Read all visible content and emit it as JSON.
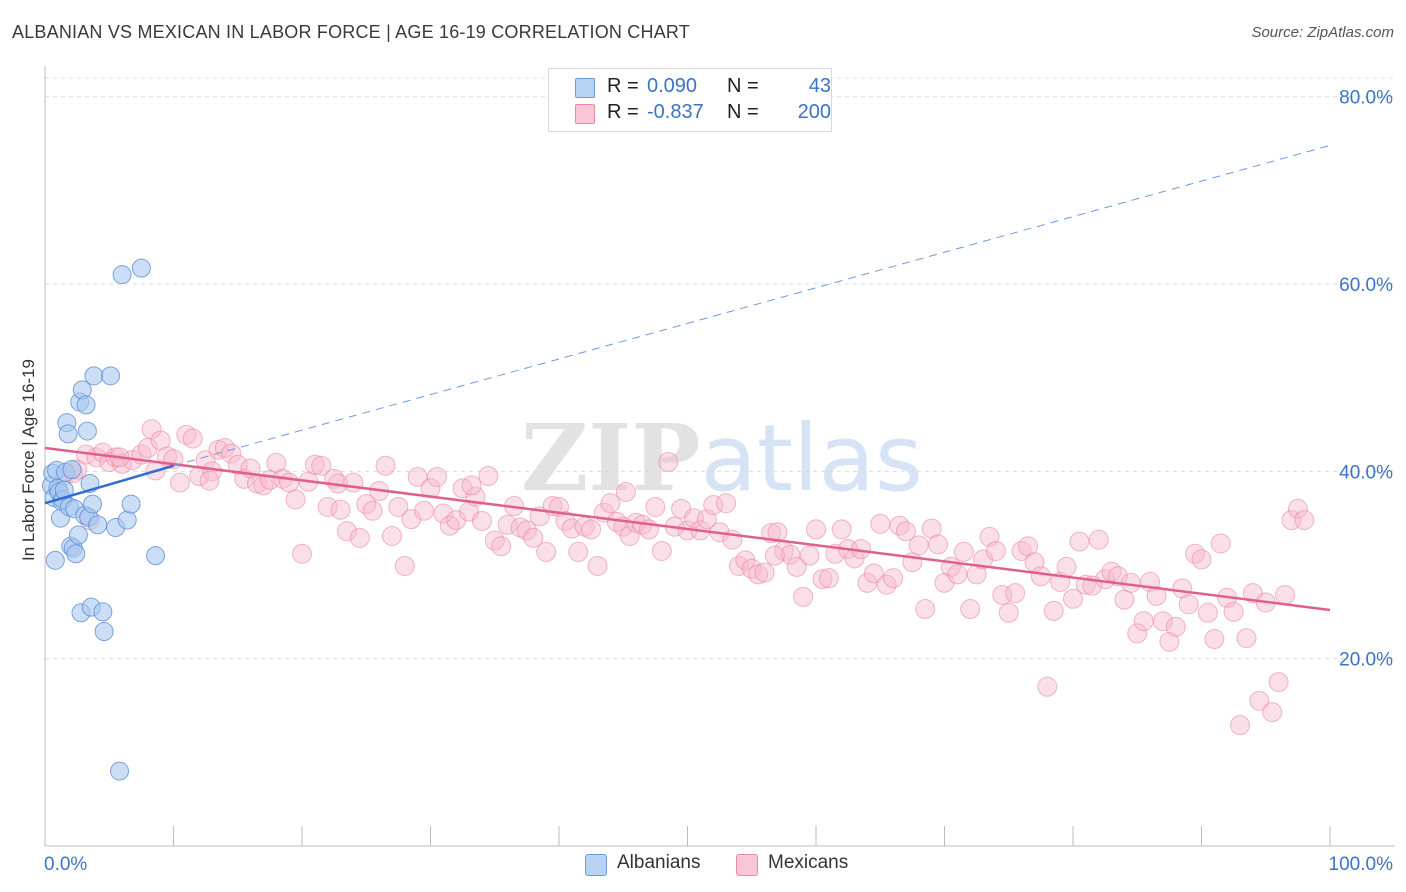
{
  "title": "ALBANIAN VS MEXICAN IN LABOR FORCE | AGE 16-19 CORRELATION CHART",
  "source": "Source: ZipAtlas.com",
  "watermark": "ZIPatlas",
  "legend_top": {
    "rows": [
      {
        "r_label": "R =",
        "r_value": "0.090",
        "n_label": "N =",
        "n_value": "43"
      },
      {
        "r_label": "R =",
        "r_value": "-0.837",
        "n_label": "N =",
        "n_value": "200"
      }
    ]
  },
  "legend_bottom": {
    "albanians": "Albanians",
    "mexicans": "Mexicans"
  },
  "colors": {
    "albanian_fill": "#a9c8f0",
    "albanian_stroke": "#5b8fd6",
    "albanian_line": "#2f6fd1",
    "mexican_fill": "#f7b9cc",
    "mexican_stroke": "#e8809f",
    "mexican_line": "#e0608a",
    "axis_text": "#3b73c8",
    "grid": "#dcdcdc"
  },
  "chart_data": {
    "type": "scatter",
    "title": "ALBANIAN VS MEXICAN IN LABOR FORCE | AGE 16-19 CORRELATION CHART",
    "xlabel": "",
    "ylabel": "In Labor Force | Age 16-19",
    "xlim": [
      0,
      100
    ],
    "ylim": [
      0,
      82
    ],
    "x_tick_labels": [
      "0.0%",
      "100.0%"
    ],
    "y_ticks": [
      20,
      40,
      60,
      80
    ],
    "y_tick_labels": [
      "20.0%",
      "40.0%",
      "60.0%",
      "80.0%"
    ],
    "grid": true,
    "legend_placement": "top-center",
    "series": [
      {
        "name": "Albanians",
        "r": 0.09,
        "n": 43,
        "trend_solid": [
          [
            0,
            36.6
          ],
          [
            10,
            40.6
          ]
        ],
        "trend_dashed": [
          [
            10,
            40.6
          ],
          [
            100,
            74.8
          ]
        ],
        "points": [
          [
            0.5,
            38.5
          ],
          [
            0.6,
            39.8
          ],
          [
            0.7,
            37.2
          ],
          [
            0.8,
            30.5
          ],
          [
            0.9,
            40.1
          ],
          [
            1.0,
            38.2
          ],
          [
            1.1,
            37.8
          ],
          [
            1.2,
            35.0
          ],
          [
            1.3,
            36.8
          ],
          [
            1.4,
            37.0
          ],
          [
            1.5,
            38.0
          ],
          [
            1.6,
            39.9
          ],
          [
            1.7,
            45.2
          ],
          [
            1.8,
            44.0
          ],
          [
            1.9,
            36.2
          ],
          [
            2.0,
            32.0
          ],
          [
            2.1,
            40.2
          ],
          [
            2.2,
            31.8
          ],
          [
            2.3,
            36.0
          ],
          [
            2.4,
            31.2
          ],
          [
            2.6,
            33.2
          ],
          [
            2.7,
            47.4
          ],
          [
            2.8,
            24.9
          ],
          [
            2.9,
            48.7
          ],
          [
            3.1,
            35.3
          ],
          [
            3.2,
            47.1
          ],
          [
            3.3,
            44.3
          ],
          [
            3.4,
            35.1
          ],
          [
            3.5,
            38.7
          ],
          [
            3.6,
            25.5
          ],
          [
            3.7,
            36.5
          ],
          [
            3.8,
            50.2
          ],
          [
            4.1,
            34.3
          ],
          [
            4.5,
            25.0
          ],
          [
            4.6,
            22.9
          ],
          [
            5.1,
            50.2
          ],
          [
            5.5,
            34.0
          ],
          [
            5.8,
            8.0
          ],
          [
            6.0,
            61.0
          ],
          [
            6.4,
            34.8
          ],
          [
            6.7,
            36.5
          ],
          [
            7.5,
            61.7
          ],
          [
            8.6,
            31.0
          ]
        ]
      },
      {
        "name": "Mexicans",
        "r": -0.837,
        "n": 200,
        "trend_solid": [
          [
            0,
            42.5
          ],
          [
            100,
            25.2
          ]
        ],
        "points": [
          [
            1.5,
            39.5
          ],
          [
            2.2,
            39.8
          ],
          [
            2.5,
            40.2
          ],
          [
            3.2,
            41.8
          ],
          [
            3.5,
            34.8
          ],
          [
            4.0,
            41.5
          ],
          [
            4.5,
            42.0
          ],
          [
            5.0,
            41.0
          ],
          [
            5.5,
            41.5
          ],
          [
            6.0,
            40.8
          ],
          [
            6.8,
            41.2
          ],
          [
            7.5,
            41.8
          ],
          [
            8.0,
            42.5
          ],
          [
            8.3,
            44.5
          ],
          [
            8.6,
            40.1
          ],
          [
            9.0,
            43.3
          ],
          [
            9.5,
            41.6
          ],
          [
            10.0,
            41.3
          ],
          [
            10.5,
            38.8
          ],
          [
            11.0,
            43.9
          ],
          [
            11.5,
            43.5
          ],
          [
            12.0,
            39.5
          ],
          [
            12.5,
            41.2
          ],
          [
            13.0,
            40.0
          ],
          [
            13.5,
            42.3
          ],
          [
            14.0,
            42.5
          ],
          [
            14.5,
            41.9
          ],
          [
            15.0,
            40.7
          ],
          [
            15.5,
            39.2
          ],
          [
            16.0,
            40.3
          ],
          [
            16.5,
            38.7
          ],
          [
            17.0,
            38.5
          ],
          [
            17.5,
            39.1
          ],
          [
            18.0,
            40.9
          ],
          [
            18.5,
            39.2
          ],
          [
            19.0,
            38.8
          ],
          [
            19.5,
            37.0
          ],
          [
            20.0,
            31.2
          ],
          [
            20.5,
            38.9
          ],
          [
            21.0,
            40.7
          ],
          [
            21.5,
            40.6
          ],
          [
            22.0,
            36.2
          ],
          [
            22.5,
            39.2
          ],
          [
            23.0,
            35.9
          ],
          [
            23.5,
            33.6
          ],
          [
            24.0,
            38.8
          ],
          [
            24.5,
            32.9
          ],
          [
            25.0,
            36.5
          ],
          [
            25.5,
            35.8
          ],
          [
            26.0,
            37.9
          ],
          [
            26.5,
            40.6
          ],
          [
            27.0,
            33.1
          ],
          [
            27.5,
            36.2
          ],
          [
            28.0,
            29.9
          ],
          [
            28.5,
            34.9
          ],
          [
            29.0,
            39.4
          ],
          [
            29.5,
            35.8
          ],
          [
            30.0,
            38.2
          ],
          [
            30.5,
            39.4
          ],
          [
            31.0,
            35.5
          ],
          [
            31.5,
            34.2
          ],
          [
            32.0,
            34.8
          ],
          [
            32.5,
            38.2
          ],
          [
            33.0,
            35.7
          ],
          [
            33.5,
            37.3
          ],
          [
            34.0,
            34.7
          ],
          [
            34.5,
            39.5
          ],
          [
            35.0,
            32.6
          ],
          [
            35.5,
            32.0
          ],
          [
            36.0,
            34.3
          ],
          [
            36.5,
            36.3
          ],
          [
            37.0,
            34.0
          ],
          [
            37.5,
            33.7
          ],
          [
            38.0,
            32.9
          ],
          [
            38.5,
            35.2
          ],
          [
            39.0,
            31.4
          ],
          [
            39.5,
            36.3
          ],
          [
            40.0,
            36.2
          ],
          [
            40.5,
            34.7
          ],
          [
            41.0,
            33.9
          ],
          [
            41.5,
            31.4
          ],
          [
            42.0,
            34.1
          ],
          [
            42.5,
            33.8
          ],
          [
            43.0,
            29.9
          ],
          [
            43.5,
            35.6
          ],
          [
            44.0,
            36.6
          ],
          [
            44.5,
            34.6
          ],
          [
            45.0,
            34.1
          ],
          [
            45.5,
            33.1
          ],
          [
            46.0,
            34.5
          ],
          [
            46.5,
            34.3
          ],
          [
            47.0,
            33.8
          ],
          [
            47.5,
            36.2
          ],
          [
            48.0,
            31.5
          ],
          [
            48.5,
            41.0
          ],
          [
            49.0,
            34.1
          ],
          [
            49.5,
            36.0
          ],
          [
            50.0,
            33.7
          ],
          [
            50.5,
            35.0
          ],
          [
            51.0,
            33.7
          ],
          [
            51.5,
            34.9
          ],
          [
            52.0,
            36.4
          ],
          [
            52.5,
            33.5
          ],
          [
            53.0,
            36.6
          ],
          [
            53.5,
            32.7
          ],
          [
            54.0,
            29.9
          ],
          [
            54.5,
            30.5
          ],
          [
            55.0,
            29.6
          ],
          [
            55.5,
            29.0
          ],
          [
            56.0,
            29.2
          ],
          [
            56.5,
            33.4
          ],
          [
            57.0,
            33.5
          ],
          [
            57.5,
            31.5
          ],
          [
            58.0,
            31.1
          ],
          [
            58.5,
            29.8
          ],
          [
            59.0,
            26.6
          ],
          [
            59.5,
            31.0
          ],
          [
            60.0,
            33.8
          ],
          [
            60.5,
            28.5
          ],
          [
            61.0,
            28.6
          ],
          [
            61.5,
            31.2
          ],
          [
            62.0,
            33.8
          ],
          [
            62.5,
            31.7
          ],
          [
            63.0,
            30.7
          ],
          [
            63.5,
            31.7
          ],
          [
            64.0,
            28.1
          ],
          [
            64.5,
            29.1
          ],
          [
            65.0,
            34.4
          ],
          [
            65.5,
            27.9
          ],
          [
            66.0,
            28.6
          ],
          [
            66.5,
            34.2
          ],
          [
            67.0,
            33.6
          ],
          [
            67.5,
            30.3
          ],
          [
            68.0,
            32.1
          ],
          [
            68.5,
            25.3
          ],
          [
            69.0,
            33.9
          ],
          [
            69.5,
            32.2
          ],
          [
            70.0,
            28.1
          ],
          [
            70.5,
            29.8
          ],
          [
            71.0,
            29.0
          ],
          [
            71.5,
            31.4
          ],
          [
            72.0,
            25.3
          ],
          [
            72.5,
            29.0
          ],
          [
            73.0,
            30.6
          ],
          [
            73.5,
            33.0
          ],
          [
            74.0,
            31.5
          ],
          [
            74.5,
            26.8
          ],
          [
            75.0,
            24.9
          ],
          [
            75.5,
            27.0
          ],
          [
            76.0,
            31.5
          ],
          [
            76.5,
            32.0
          ],
          [
            77.0,
            30.3
          ],
          [
            77.5,
            28.8
          ],
          [
            78.0,
            17.0
          ],
          [
            78.5,
            25.1
          ],
          [
            79.0,
            28.2
          ],
          [
            79.5,
            29.8
          ],
          [
            80.0,
            26.4
          ],
          [
            80.5,
            32.5
          ],
          [
            81.0,
            27.9
          ],
          [
            81.5,
            27.8
          ],
          [
            82.0,
            32.7
          ],
          [
            82.5,
            28.5
          ],
          [
            83.0,
            29.3
          ],
          [
            83.5,
            28.8
          ],
          [
            84.0,
            26.3
          ],
          [
            84.5,
            28.1
          ],
          [
            85.0,
            22.7
          ],
          [
            85.5,
            24.0
          ],
          [
            86.0,
            28.2
          ],
          [
            86.5,
            26.7
          ],
          [
            87.0,
            24.0
          ],
          [
            87.5,
            21.8
          ],
          [
            88.0,
            23.4
          ],
          [
            88.5,
            27.5
          ],
          [
            89.0,
            25.8
          ],
          [
            89.5,
            31.2
          ],
          [
            90.0,
            30.6
          ],
          [
            90.5,
            24.9
          ],
          [
            91.0,
            22.1
          ],
          [
            91.5,
            32.3
          ],
          [
            92.0,
            26.5
          ],
          [
            92.5,
            25.0
          ],
          [
            93.0,
            12.9
          ],
          [
            93.5,
            22.2
          ],
          [
            94.0,
            27.0
          ],
          [
            94.5,
            15.5
          ],
          [
            95.0,
            26.0
          ],
          [
            95.5,
            14.3
          ],
          [
            96.0,
            17.5
          ],
          [
            96.5,
            26.8
          ],
          [
            97.0,
            34.8
          ],
          [
            97.5,
            36.0
          ],
          [
            98.0,
            34.8
          ],
          [
            56.8,
            31.0
          ],
          [
            45.2,
            37.8
          ],
          [
            33.2,
            38.5
          ],
          [
            22.8,
            38.7
          ],
          [
            12.8,
            39.0
          ],
          [
            5.8,
            41.5
          ]
        ]
      }
    ]
  }
}
